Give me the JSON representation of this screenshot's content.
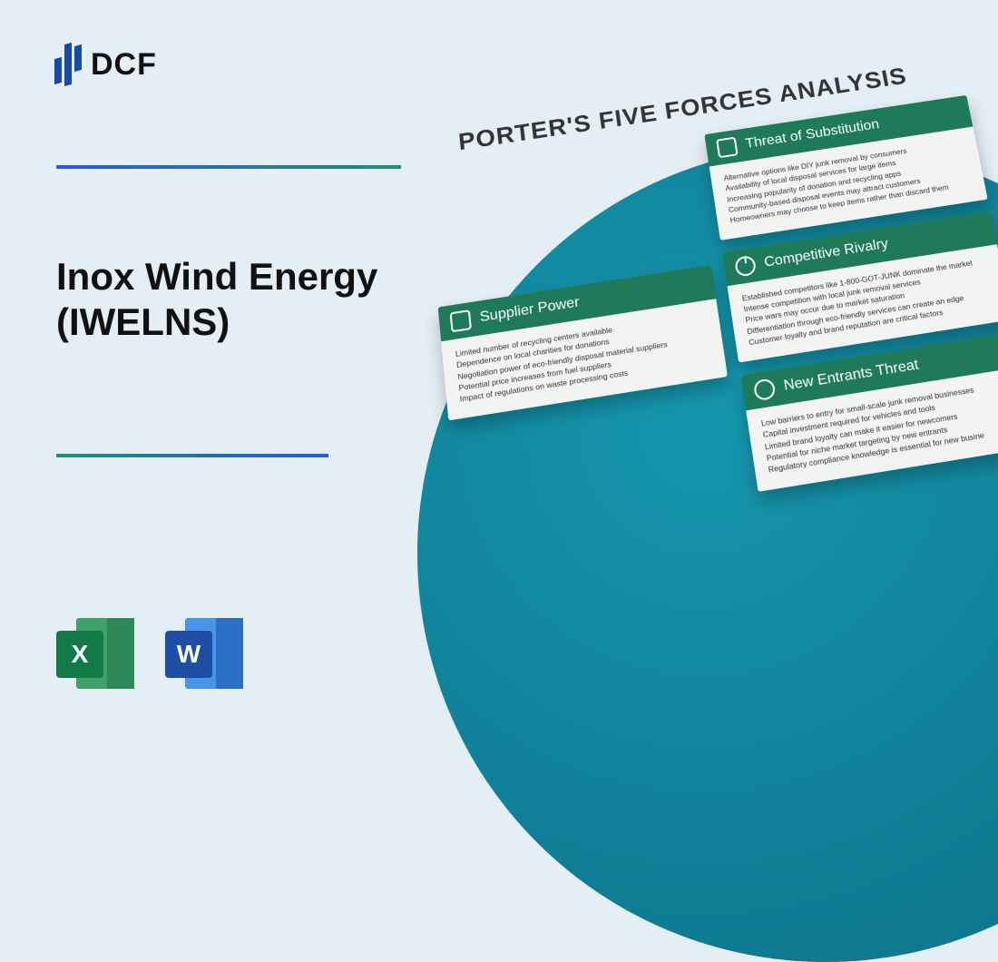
{
  "logo": {
    "text": "DCF"
  },
  "title": "Inox Wind Energy (IWELNS)",
  "icons": {
    "excel": "X",
    "word": "W"
  },
  "porter": {
    "heading": "PORTER'S FIVE FORCES ANALYSIS",
    "colors": {
      "card_header_bg": "#1f7a5a",
      "card_bg": "#f2f4f2",
      "circle_gradient_from": "#1596ad",
      "circle_gradient_to": "#0b6f86"
    },
    "cards": {
      "supplier_power": {
        "title": "Supplier Power",
        "lines": [
          "Limited number of recycling centers available",
          "Dependence on local charities for donations",
          "Negotiation power of eco-friendly disposal material suppliers",
          "Potential price increases from fuel suppliers",
          "Impact of regulations on waste processing costs"
        ]
      },
      "threat_substitution": {
        "title": "Threat of Substitution",
        "lines": [
          "Alternative options like DIY junk removal by consumers",
          "Availability of local disposal services for large items",
          "Increasing popularity of donation and recycling apps",
          "Community-based disposal events may attract customers",
          "Homeowners may choose to keep items rather than discard them"
        ]
      },
      "competitive_rivalry": {
        "title": "Competitive Rivalry",
        "lines": [
          "Established competitors like 1-800-GOT-JUNK dominate the market",
          "Intense competition with local junk removal services",
          "Price wars may occur due to market saturation",
          "Differentiation through eco-friendly services can create an edge",
          "Customer loyalty and brand reputation are critical factors"
        ]
      },
      "new_entrants": {
        "title": "New Entrants Threat",
        "lines": [
          "Low barriers to entry for small-scale junk removal businesses",
          "Capital investment required for vehicles and tools",
          "Limited brand loyalty can make it easier for newcomers",
          "Potential for niche market targeting by new entrants",
          "Regulatory compliance knowledge is essential for new busine"
        ]
      }
    }
  }
}
